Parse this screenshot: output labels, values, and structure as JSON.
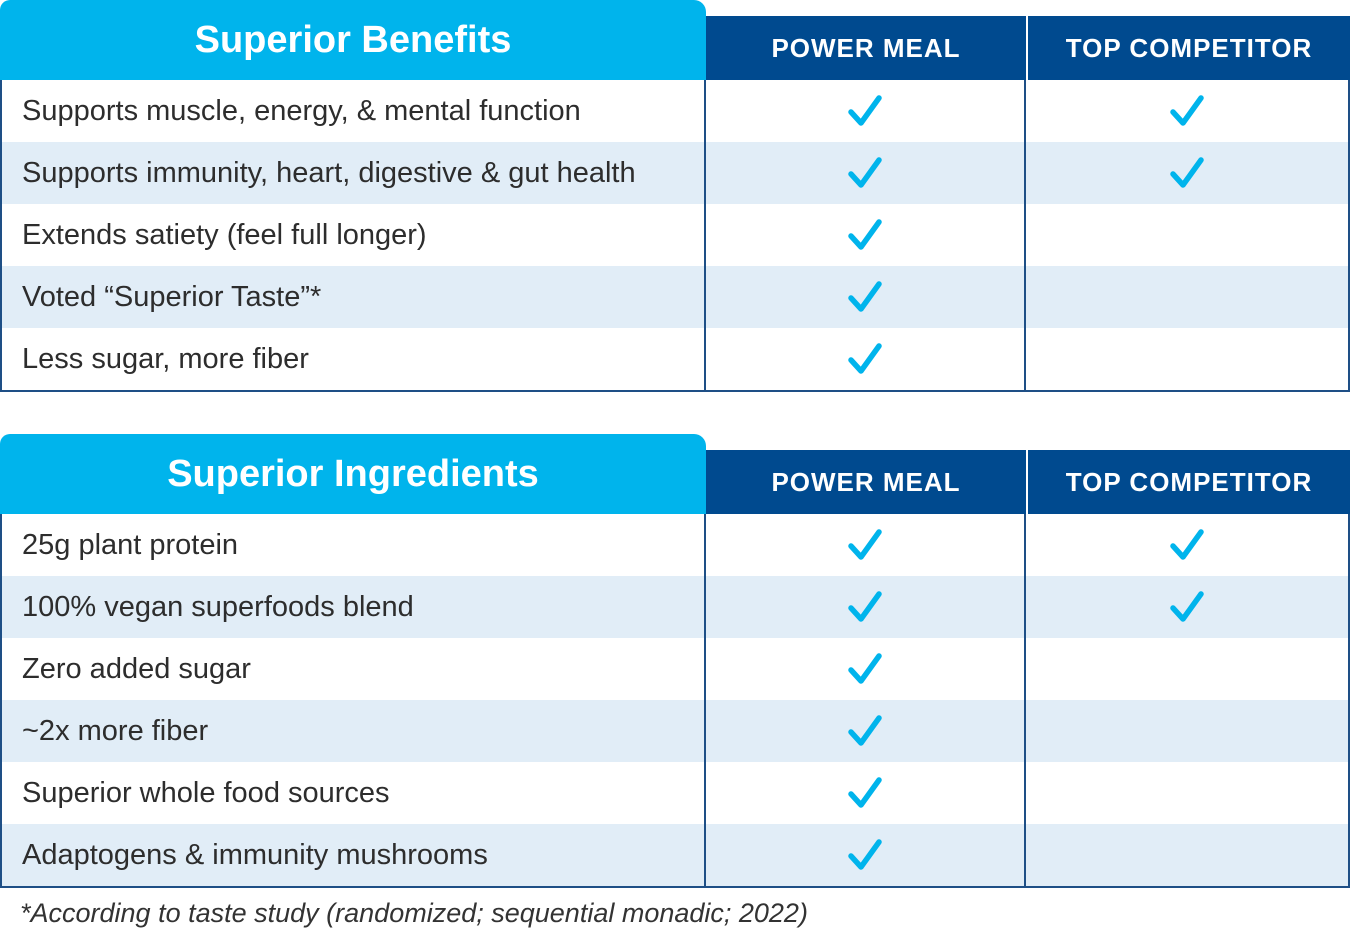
{
  "colors": {
    "title_bg": "#00b4ec",
    "header_bg": "#004a8f",
    "alt_row": "#e1edf7",
    "check": "#00b4ec",
    "border": "#1e4f86"
  },
  "icons": {
    "yes": "check-icon"
  },
  "tables": [
    {
      "title": "Superior Benefits",
      "col1": "POWER MEAL",
      "col2": "TOP COMPETITOR",
      "rows": [
        {
          "label": "Supports muscle, energy, & mental function",
          "power_meal": true,
          "competitor": true
        },
        {
          "label": "Supports immunity, heart, digestive & gut health",
          "power_meal": true,
          "competitor": true
        },
        {
          "label": "Extends satiety (feel full longer)",
          "power_meal": true,
          "competitor": false
        },
        {
          "label": "Voted “Superior Taste”*",
          "power_meal": true,
          "competitor": false
        },
        {
          "label": "Less sugar, more fiber",
          "power_meal": true,
          "competitor": false
        }
      ]
    },
    {
      "title": "Superior Ingredients",
      "col1": "POWER MEAL",
      "col2": "TOP COMPETITOR",
      "rows": [
        {
          "label": "25g plant protein",
          "power_meal": true,
          "competitor": true
        },
        {
          "label": "100% vegan superfoods blend",
          "power_meal": true,
          "competitor": true
        },
        {
          "label": "Zero added sugar",
          "power_meal": true,
          "competitor": false
        },
        {
          "label": "~2x more fiber",
          "power_meal": true,
          "competitor": false
        },
        {
          "label": "Superior whole food sources",
          "power_meal": true,
          "competitor": false
        },
        {
          "label": "Adaptogens & immunity mushrooms",
          "power_meal": true,
          "competitor": false
        }
      ]
    }
  ],
  "footnote": "*According to taste study (randomized; sequential monadic; 2022)"
}
